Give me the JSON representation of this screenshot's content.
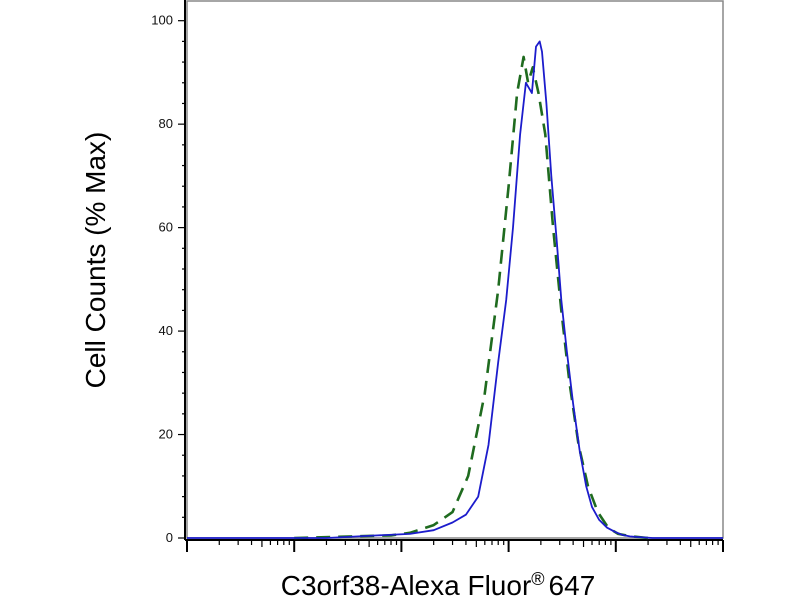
{
  "chart_data": {
    "type": "line",
    "title": "",
    "xlabel": "C3orf38-Alexa Fluor",
    "xlabel_superscript": "®",
    "xlabel_suffix": "647",
    "ylabel": "Cell Counts (% Max)",
    "x_scale": "log",
    "xlim": [
      1,
      100000
    ],
    "ylim": [
      0,
      104
    ],
    "y_ticks": [
      "0",
      "20",
      "40",
      "60",
      "80",
      "100"
    ],
    "grid": false,
    "legend": "none",
    "series": [
      {
        "style": "dashed",
        "color": "#1f6b1f",
        "x": [
          10,
          80,
          120,
          200,
          300,
          420,
          600,
          800,
          1000,
          1200,
          1380,
          1520,
          1680,
          1900,
          2200,
          2600,
          3100,
          3700,
          4500,
          5500,
          6800,
          8500,
          10500,
          14000,
          20000
        ],
        "y": [
          0,
          0.5,
          1,
          2.5,
          5,
          12,
          28,
          48,
          68,
          86,
          93,
          88,
          91,
          86,
          78,
          60,
          44,
          30,
          18,
          10,
          5,
          2,
          0.8,
          0.3,
          0
        ]
      },
      {
        "style": "solid",
        "color": "#1c1ccc",
        "x": [
          1,
          20,
          60,
          120,
          200,
          300,
          400,
          520,
          650,
          800,
          950,
          1100,
          1280,
          1450,
          1650,
          1800,
          1950,
          2050,
          2250,
          2500,
          2800,
          3100,
          3500,
          4000,
          4600,
          5300,
          6000,
          7000,
          8300,
          9800,
          11500,
          13500,
          16000,
          22000,
          100000
        ],
        "y": [
          0,
          0,
          0.5,
          0.8,
          1.5,
          3,
          4.5,
          8,
          18,
          34,
          46,
          60,
          78,
          88,
          86,
          95,
          96,
          94,
          84,
          70,
          58,
          46,
          36,
          26,
          17,
          10,
          6,
          3.5,
          2,
          1.2,
          0.6,
          0.3,
          0.2,
          0,
          0
        ]
      }
    ]
  }
}
